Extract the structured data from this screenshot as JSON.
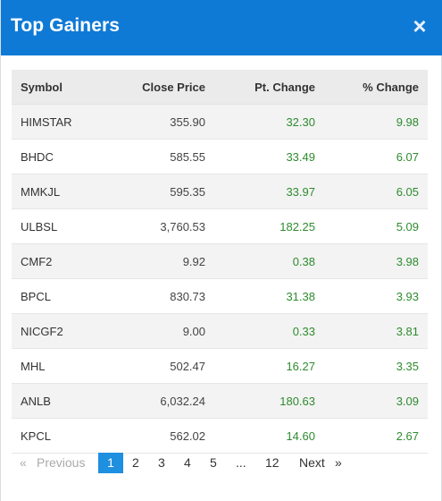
{
  "header": {
    "title": "Top Gainers",
    "close_icon": "close-icon"
  },
  "table": {
    "columns": [
      "Symbol",
      "Close Price",
      "Pt. Change",
      "% Change"
    ],
    "rows": [
      [
        "HIMSTAR",
        "355.90",
        "32.30",
        "9.98"
      ],
      [
        "BHDC",
        "585.55",
        "33.49",
        "6.07"
      ],
      [
        "MMKJL",
        "595.35",
        "33.97",
        "6.05"
      ],
      [
        "ULBSL",
        "3,760.53",
        "182.25",
        "5.09"
      ],
      [
        "CMF2",
        "9.92",
        "0.38",
        "3.98"
      ],
      [
        "BPCL",
        "830.73",
        "31.38",
        "3.93"
      ],
      [
        "NICGF2",
        "9.00",
        "0.33",
        "3.81"
      ],
      [
        "MHL",
        "502.47",
        "16.27",
        "3.35"
      ],
      [
        "ANLB",
        "6,032.24",
        "180.63",
        "3.09"
      ],
      [
        "KPCL",
        "562.02",
        "14.60",
        "2.67"
      ]
    ]
  },
  "pagination": {
    "prev_arrow": "«",
    "prev_label": "Previous",
    "pages": [
      "1",
      "2",
      "3",
      "4",
      "5"
    ],
    "ellipsis": "...",
    "last_page": "12",
    "next_label": "Next",
    "next_arrow": "»",
    "current": "1"
  },
  "colors": {
    "header_bg": "#0f7ad6",
    "positive": "#2e8b2e",
    "active_page": "#1f8fe0"
  }
}
